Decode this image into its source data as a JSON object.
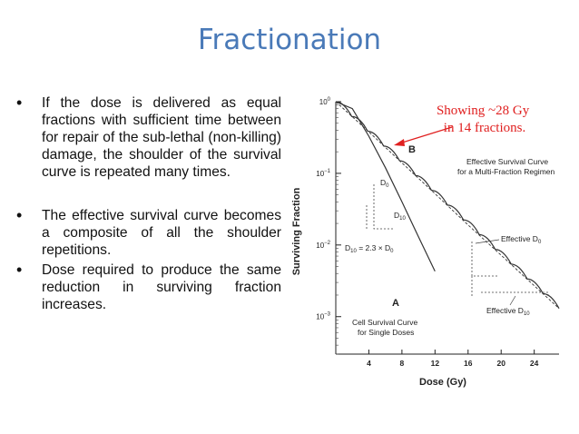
{
  "slide": {
    "title": "Fractionation",
    "bullets": [
      "If the dose is delivered as equal fractions with sufficient time between for repair of the sub-lethal (non-killing) damage, the shoulder of the survival curve is repeated many times.",
      "The effective survival curve becomes a composite of all the shoulder repetitions.",
      "Dose required to produce the same reduction in surviving fraction increases."
    ]
  },
  "figure": {
    "callout": [
      "Showing ~28 Gy",
      "in 14 fractions."
    ],
    "label_a": "A",
    "label_b": "B",
    "curve_b_label": [
      "Effective Survival Curve",
      "for a Multi-Fraction Regimen"
    ],
    "curve_a_label": [
      "Cell Survival Curve",
      "for Single Doses"
    ],
    "d0_label": "D",
    "d0_sub": "0",
    "d10_label": "D",
    "d10_sub": "10",
    "relation": "D",
    "relation_sub": "10",
    "relation_rest": " = 2.3 × D",
    "relation_sub2": "0",
    "effective_d0": "Effective D",
    "effective_d0_sub": "0",
    "effective_d10": "Effective D",
    "effective_d10_sub": "10",
    "callout_color": "#e02020"
  },
  "chart_data": {
    "type": "line",
    "xlabel": "Dose (Gy)",
    "ylabel": "Surviving Fraction",
    "xlim": [
      0,
      27
    ],
    "ylim": [
      0.0003,
      1
    ],
    "yscale": "log",
    "x_ticks": [
      "4",
      "8",
      "12",
      "16",
      "20",
      "24"
    ],
    "y_ticks": [
      "10^0",
      "10^-1",
      "10^-2",
      "10^-3"
    ],
    "series": [
      {
        "name": "A",
        "x": [
          0,
          2,
          4,
          6,
          8,
          10,
          12
        ],
        "y": [
          1,
          0.8,
          0.33,
          0.12,
          0.04,
          0.013,
          0.0043
        ]
      },
      {
        "name": "B",
        "x": [
          0,
          4,
          8,
          12,
          16,
          20,
          24,
          27
        ],
        "y": [
          1,
          0.38,
          0.14,
          0.052,
          0.019,
          0.0072,
          0.0027,
          0.0013
        ]
      }
    ]
  }
}
